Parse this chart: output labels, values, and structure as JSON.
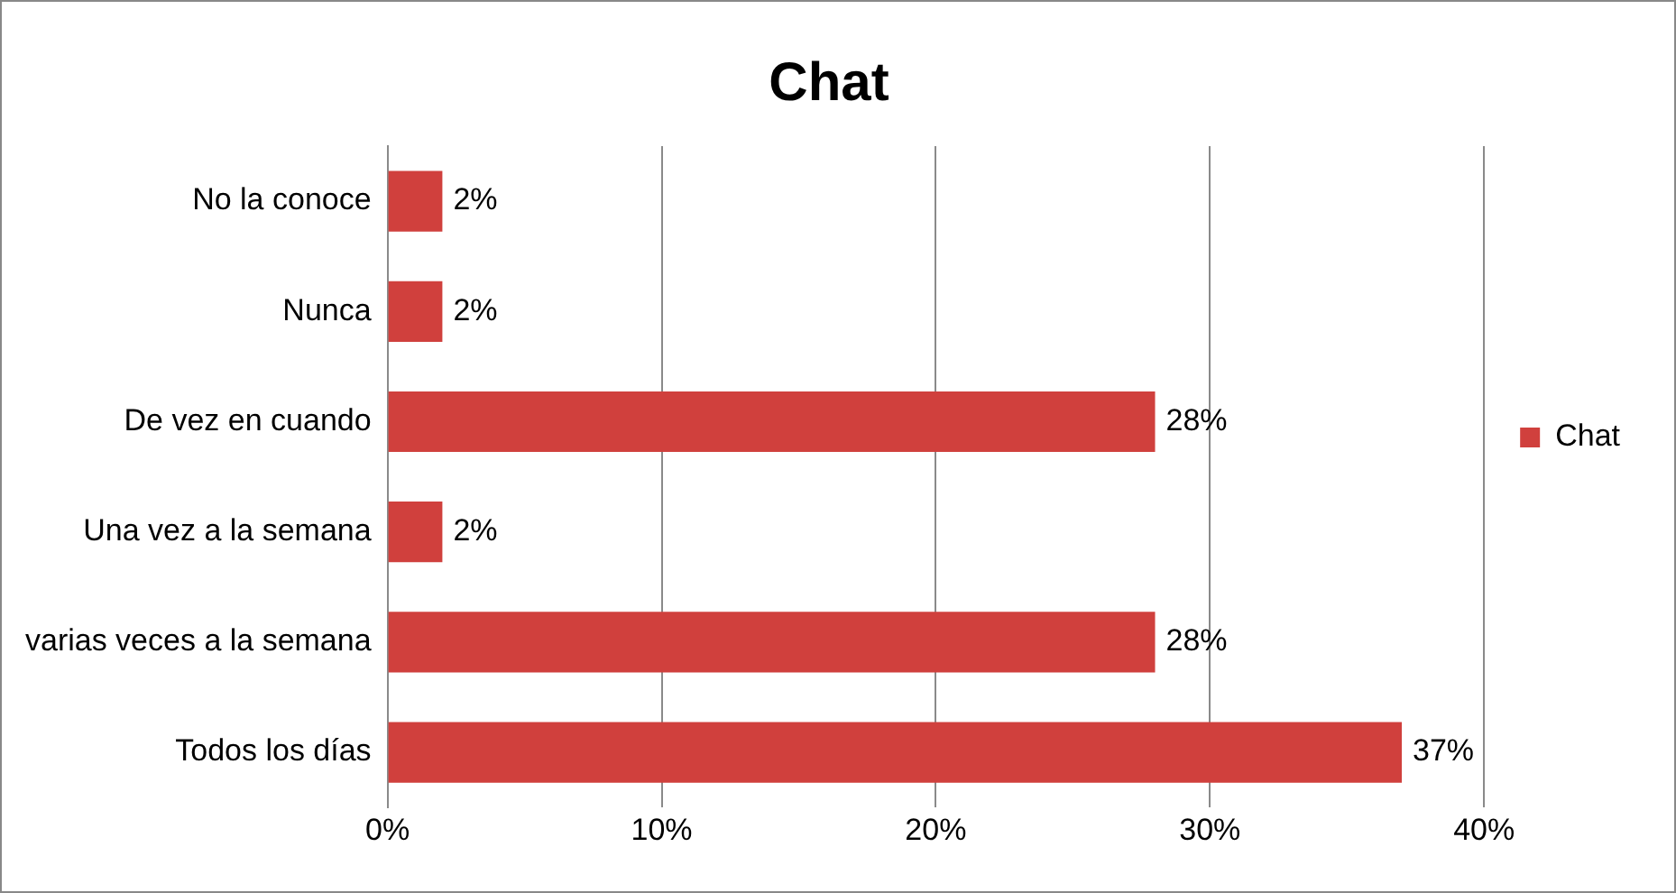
{
  "chart_data": {
    "type": "bar",
    "orientation": "horizontal",
    "title": "Chat",
    "categories": [
      "No la conoce",
      "Nunca",
      "De vez en cuando",
      "Una vez a la semana",
      "varias veces a la semana",
      "Todos los días"
    ],
    "series": [
      {
        "name": "Chat",
        "color": "#d0403d",
        "values": [
          2,
          2,
          28,
          2,
          28,
          37
        ],
        "value_labels": [
          "2%",
          "2%",
          "28%",
          "2%",
          "28%",
          "37%"
        ]
      }
    ],
    "xlim": [
      0,
      40
    ],
    "xticks": [
      {
        "value": 0,
        "label": "0%"
      },
      {
        "value": 10,
        "label": "10%"
      },
      {
        "value": 20,
        "label": "20%"
      },
      {
        "value": 30,
        "label": "30%"
      },
      {
        "value": 40,
        "label": "40%"
      }
    ],
    "grid": "x",
    "legend": "right"
  }
}
